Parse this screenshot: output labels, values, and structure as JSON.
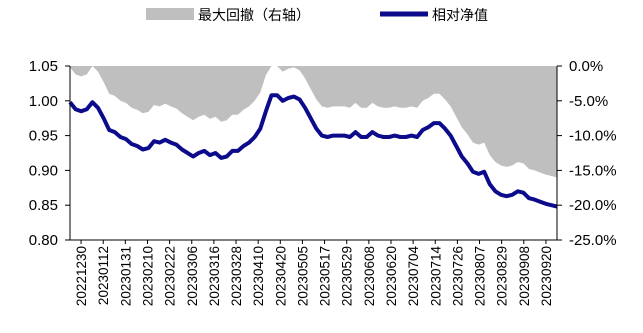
{
  "chart_data": {
    "type": "line",
    "legend_position": "top",
    "series": [
      {
        "name": "最大回撤（右轴）",
        "kind": "area",
        "axis": "right",
        "color": "#bfbfbf"
      },
      {
        "name": "相对净值",
        "kind": "line",
        "axis": "left",
        "color": "#0b0b8c"
      }
    ],
    "x_tick_labels": [
      "20221230",
      "20230112",
      "20230131",
      "20230210",
      "20230222",
      "20230306",
      "20230316",
      "20230328",
      "20230410",
      "20230420",
      "20230505",
      "20230517",
      "20230529",
      "20230608",
      "20230620",
      "20230704",
      "20230714",
      "20230726",
      "20230807",
      "20230829",
      "20230908",
      "20230920"
    ],
    "y_left": {
      "ticks": [
        "0.80",
        "0.85",
        "0.90",
        "0.95",
        "1.00",
        "1.05"
      ],
      "min": 0.8,
      "max": 1.05
    },
    "y_right": {
      "ticks": [
        "-25.0%",
        "-20.0%",
        "-15.0%",
        "-10.0%",
        "-5.0%",
        "0.0%"
      ],
      "min": -25,
      "max": 0
    },
    "relative_nav": [
      0.998,
      0.988,
      0.985,
      0.988,
      0.998,
      0.99,
      0.975,
      0.958,
      0.955,
      0.948,
      0.945,
      0.938,
      0.935,
      0.93,
      0.932,
      0.942,
      0.94,
      0.944,
      0.94,
      0.937,
      0.93,
      0.925,
      0.92,
      0.925,
      0.928,
      0.922,
      0.925,
      0.918,
      0.92,
      0.928,
      0.928,
      0.935,
      0.94,
      0.948,
      0.96,
      0.985,
      1.008,
      1.008,
      1.0,
      1.004,
      1.006,
      1.002,
      0.99,
      0.975,
      0.96,
      0.95,
      0.948,
      0.95,
      0.95,
      0.95,
      0.948,
      0.955,
      0.948,
      0.948,
      0.955,
      0.95,
      0.948,
      0.948,
      0.95,
      0.948,
      0.948,
      0.95,
      0.948,
      0.958,
      0.962,
      0.968,
      0.968,
      0.96,
      0.95,
      0.935,
      0.92,
      0.91,
      0.898,
      0.895,
      0.898,
      0.88,
      0.87,
      0.865,
      0.863,
      0.865,
      0.87,
      0.868,
      0.86,
      0.858,
      0.855,
      0.852,
      0.85,
      0.848
    ],
    "max_drawdown_pct": [
      -0.2,
      -1.2,
      -1.5,
      -1.2,
      0,
      -0.8,
      -2.3,
      -4.0,
      -4.3,
      -5.0,
      -5.3,
      -6.0,
      -6.3,
      -6.8,
      -6.6,
      -5.6,
      -5.8,
      -5.4,
      -5.8,
      -6.1,
      -6.8,
      -7.3,
      -7.8,
      -7.3,
      -7.0,
      -7.6,
      -7.3,
      -8.0,
      -7.8,
      -7.0,
      -7.0,
      -6.3,
      -5.8,
      -5.0,
      -3.8,
      -1.3,
      0,
      0,
      -0.8,
      -0.4,
      -0.2,
      -0.6,
      -1.8,
      -3.3,
      -4.8,
      -5.8,
      -6.0,
      -5.8,
      -5.8,
      -5.8,
      -6.0,
      -5.3,
      -6.0,
      -6.0,
      -5.3,
      -5.8,
      -6.0,
      -6.0,
      -5.8,
      -6.0,
      -6.0,
      -5.8,
      -6.0,
      -5.0,
      -4.6,
      -4.0,
      -4.0,
      -4.8,
      -5.8,
      -7.3,
      -8.8,
      -9.8,
      -11.0,
      -11.3,
      -11.0,
      -12.8,
      -13.8,
      -14.3,
      -14.5,
      -14.3,
      -13.8,
      -14.0,
      -14.8,
      -15.0,
      -15.3,
      -15.6,
      -15.8,
      -16.0
    ]
  }
}
